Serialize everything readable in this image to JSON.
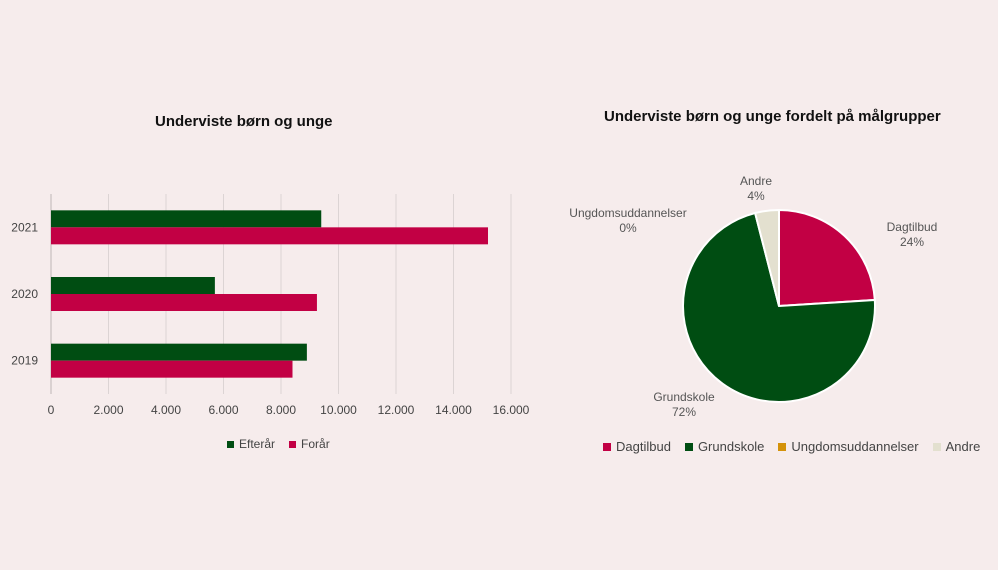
{
  "chart_data": [
    {
      "type": "bar",
      "orientation": "horizontal",
      "title": "Underviste børn og unge",
      "categories": [
        "2021",
        "2020",
        "2019"
      ],
      "series": [
        {
          "name": "Efterår",
          "color": "#004d12",
          "values": [
            9400,
            5700,
            8900
          ]
        },
        {
          "name": "Forår",
          "color": "#c20044",
          "values": [
            15200,
            9250,
            8400
          ]
        }
      ],
      "xlim": [
        0,
        16000
      ],
      "xticks": [
        "0",
        "2.000",
        "4.000",
        "6.000",
        "8.000",
        "10.000",
        "12.000",
        "14.000",
        "16.000"
      ],
      "grid": true,
      "legend": "bottom"
    },
    {
      "type": "pie",
      "title": "Underviste børn og unge fordelt på målgrupper",
      "slices": [
        {
          "name": "Dagtilbud",
          "value": 24,
          "label": "24%",
          "color": "#c20044"
        },
        {
          "name": "Grundskole",
          "value": 72,
          "label": "72%",
          "color": "#004d12"
        },
        {
          "name": "Ungdomsuddannelser",
          "value": 0,
          "label": "0%",
          "color": "#d4920a"
        },
        {
          "name": "Andre",
          "value": 4,
          "label": "4%",
          "color": "#e3e0cf"
        }
      ],
      "legend": "bottom"
    }
  ]
}
